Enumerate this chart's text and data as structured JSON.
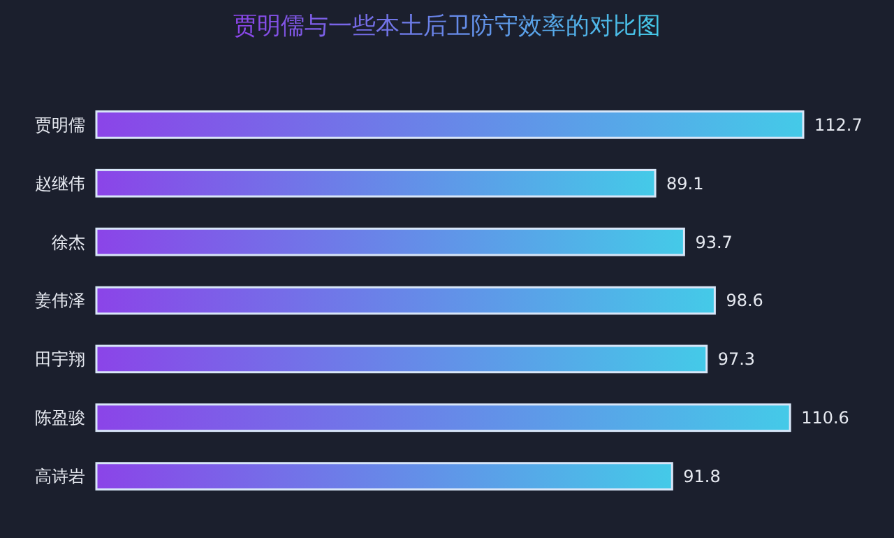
{
  "chart_data": {
    "type": "bar",
    "orientation": "horizontal",
    "title": "贾明儒与一些本土后卫防守效率的对比图",
    "categories": [
      "贾明儒",
      "赵继伟",
      "徐杰",
      "姜伟泽",
      "田宇翔",
      "陈盈骏",
      "高诗岩"
    ],
    "values": [
      112.7,
      89.1,
      93.7,
      98.6,
      97.3,
      110.6,
      91.8
    ],
    "color": "#8b44e8",
    "data_labels": true
  }
}
